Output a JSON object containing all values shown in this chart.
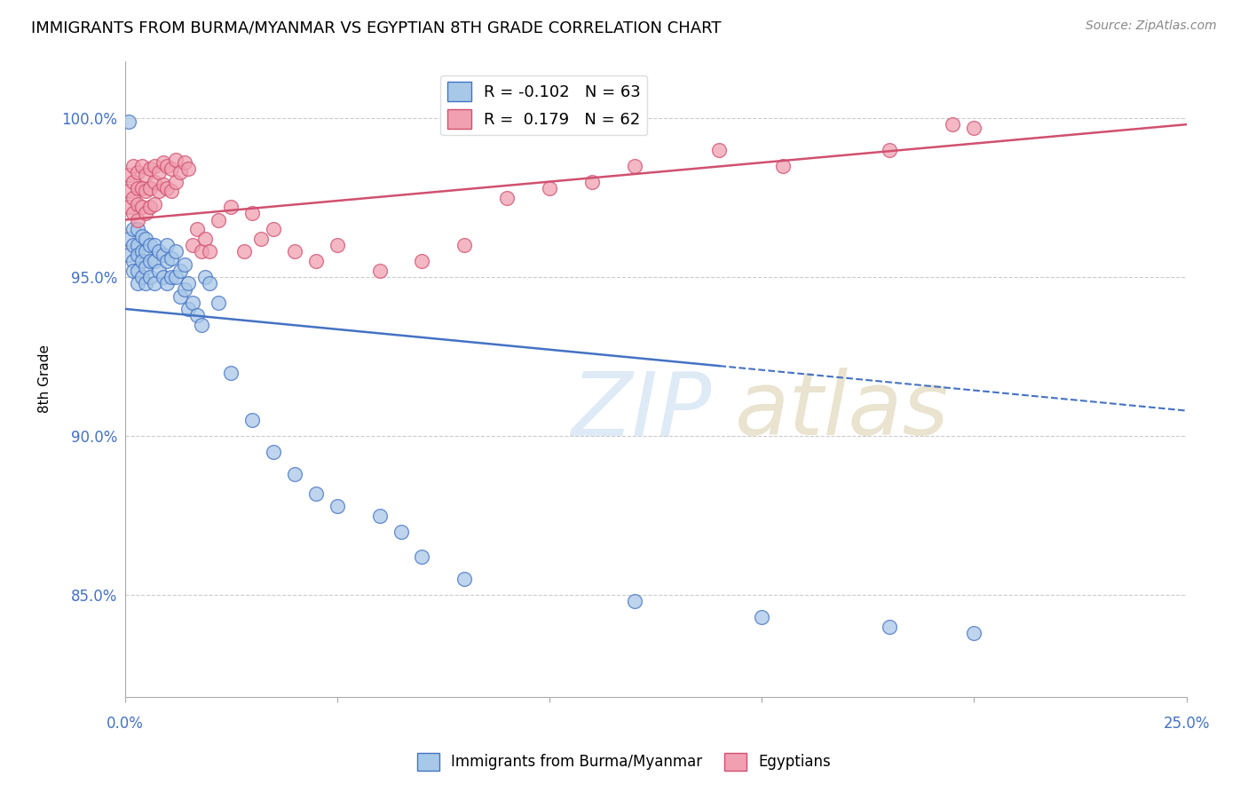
{
  "title": "IMMIGRANTS FROM BURMA/MYANMAR VS EGYPTIAN 8TH GRADE CORRELATION CHART",
  "source": "Source: ZipAtlas.com",
  "ylabel": "8th Grade",
  "ytick_labels": [
    "85.0%",
    "90.0%",
    "95.0%",
    "100.0%"
  ],
  "ytick_values": [
    0.85,
    0.9,
    0.95,
    1.0
  ],
  "xmin": 0.0,
  "xmax": 0.25,
  "ymin": 0.818,
  "ymax": 1.018,
  "legend_r_blue": "-0.102",
  "legend_n_blue": "63",
  "legend_r_pink": "0.179",
  "legend_n_pink": "62",
  "blue_color": "#a8c8e8",
  "pink_color": "#f0a0b0",
  "trendline_blue_color": "#4472c4",
  "trendline_pink_color": "#d05070",
  "watermark": "ZIPatlas",
  "blue_scatter_x": [
    0.001,
    0.001,
    0.001,
    0.002,
    0.002,
    0.002,
    0.002,
    0.003,
    0.003,
    0.003,
    0.003,
    0.003,
    0.004,
    0.004,
    0.004,
    0.004,
    0.005,
    0.005,
    0.005,
    0.005,
    0.006,
    0.006,
    0.006,
    0.007,
    0.007,
    0.007,
    0.008,
    0.008,
    0.009,
    0.009,
    0.01,
    0.01,
    0.01,
    0.011,
    0.011,
    0.012,
    0.012,
    0.013,
    0.013,
    0.014,
    0.014,
    0.015,
    0.015,
    0.016,
    0.017,
    0.018,
    0.019,
    0.02,
    0.022,
    0.025,
    0.03,
    0.035,
    0.04,
    0.045,
    0.05,
    0.06,
    0.065,
    0.07,
    0.08,
    0.12,
    0.15,
    0.18,
    0.2
  ],
  "blue_scatter_y": [
    0.999,
    0.962,
    0.957,
    0.965,
    0.96,
    0.955,
    0.952,
    0.965,
    0.96,
    0.957,
    0.952,
    0.948,
    0.963,
    0.958,
    0.955,
    0.95,
    0.962,
    0.958,
    0.953,
    0.948,
    0.96,
    0.955,
    0.95,
    0.96,
    0.955,
    0.948,
    0.958,
    0.952,
    0.957,
    0.95,
    0.96,
    0.955,
    0.948,
    0.956,
    0.95,
    0.958,
    0.95,
    0.952,
    0.944,
    0.954,
    0.946,
    0.948,
    0.94,
    0.942,
    0.938,
    0.935,
    0.95,
    0.948,
    0.942,
    0.92,
    0.905,
    0.895,
    0.888,
    0.882,
    0.878,
    0.875,
    0.87,
    0.862,
    0.855,
    0.848,
    0.843,
    0.84,
    0.838
  ],
  "pink_scatter_x": [
    0.001,
    0.001,
    0.001,
    0.002,
    0.002,
    0.002,
    0.002,
    0.003,
    0.003,
    0.003,
    0.003,
    0.004,
    0.004,
    0.004,
    0.005,
    0.005,
    0.005,
    0.006,
    0.006,
    0.006,
    0.007,
    0.007,
    0.007,
    0.008,
    0.008,
    0.009,
    0.009,
    0.01,
    0.01,
    0.011,
    0.011,
    0.012,
    0.012,
    0.013,
    0.014,
    0.015,
    0.016,
    0.017,
    0.018,
    0.019,
    0.02,
    0.022,
    0.025,
    0.028,
    0.03,
    0.032,
    0.035,
    0.04,
    0.045,
    0.05,
    0.06,
    0.07,
    0.08,
    0.09,
    0.1,
    0.11,
    0.12,
    0.14,
    0.155,
    0.18,
    0.195,
    0.2
  ],
  "pink_scatter_y": [
    0.982,
    0.977,
    0.972,
    0.985,
    0.98,
    0.975,
    0.97,
    0.983,
    0.978,
    0.973,
    0.968,
    0.985,
    0.978,
    0.972,
    0.982,
    0.977,
    0.97,
    0.984,
    0.978,
    0.972,
    0.985,
    0.98,
    0.973,
    0.983,
    0.977,
    0.986,
    0.979,
    0.985,
    0.978,
    0.984,
    0.977,
    0.987,
    0.98,
    0.983,
    0.986,
    0.984,
    0.96,
    0.965,
    0.958,
    0.962,
    0.958,
    0.968,
    0.972,
    0.958,
    0.97,
    0.962,
    0.965,
    0.958,
    0.955,
    0.96,
    0.952,
    0.955,
    0.96,
    0.975,
    0.978,
    0.98,
    0.985,
    0.99,
    0.985,
    0.99,
    0.998,
    0.997
  ],
  "blue_trendline_x0": 0.0,
  "blue_trendline_y0": 0.94,
  "blue_trendline_x1": 0.25,
  "blue_trendline_y1": 0.908,
  "pink_trendline_x0": 0.0,
  "pink_trendline_y0": 0.968,
  "pink_trendline_x1": 0.25,
  "pink_trendline_y1": 0.998
}
